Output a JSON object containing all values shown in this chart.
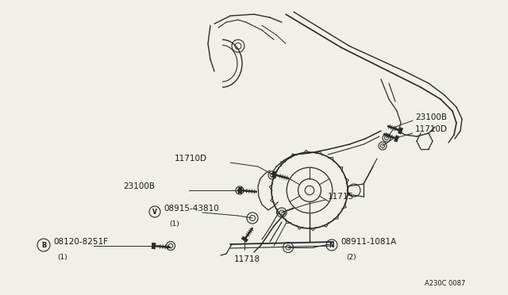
{
  "bg_color": "#f0efe8",
  "line_color": "#2a2a2a",
  "text_color": "#1a1a1a",
  "diagram_code": "A230C 0087",
  "figsize": [
    6.4,
    3.72
  ],
  "dpi": 100,
  "labels": {
    "23100B_top": "23100B",
    "11710D_top": "11710D",
    "11710D_mid": "11710D",
    "23100B_mid": "23100B",
    "V_label": "V",
    "08915": "08915-43810",
    "08915_sub": "(1)",
    "11715": "11715",
    "11718": "11718",
    "B_label": "B",
    "08120": "08120-8251F",
    "08120_sub": "(1)",
    "N_label": "N",
    "08911": "08911-1081A",
    "08911_sub": "(2)"
  }
}
